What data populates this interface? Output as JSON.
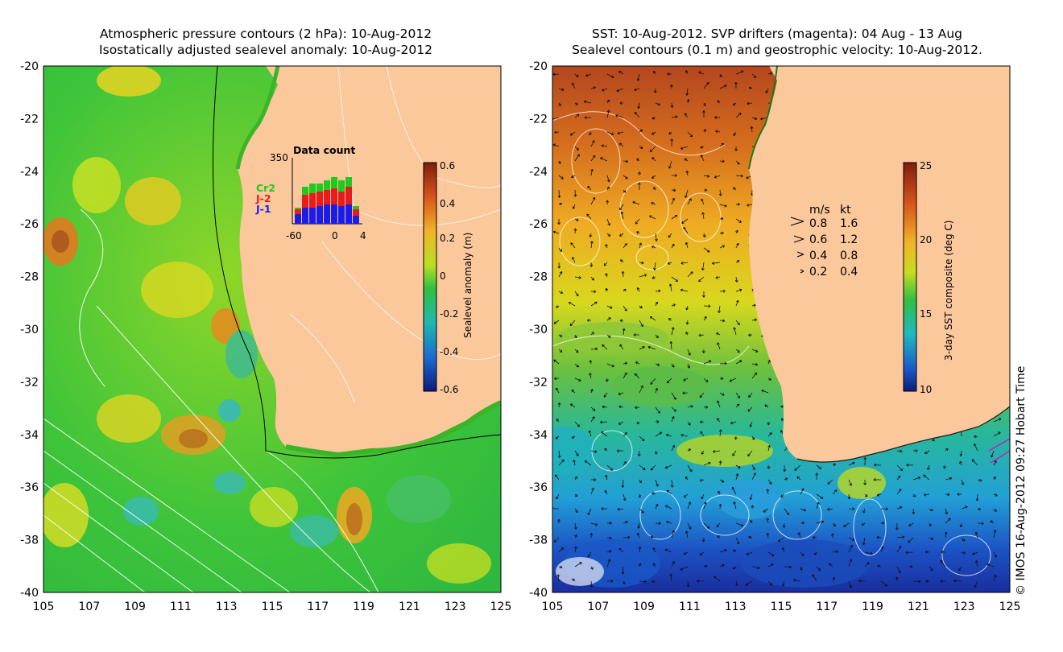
{
  "left_panel": {
    "title_line1": "Atmospheric pressure contours (2 hPa): 10-Aug-2012",
    "title_line2": "Isostatically adjusted sealevel anomaly: 10-Aug-2012",
    "colorbar_label": "Sealevel anomaly (m)",
    "colorbar_ticks": [
      "0.6",
      "0.4",
      "0.2",
      "0",
      "-0.2",
      "-0.4",
      "-0.6"
    ],
    "inset": {
      "title": "Data count",
      "ymax_label": "350",
      "x_labels": [
        "-60",
        "0",
        "4"
      ],
      "legend": [
        "Cr2",
        "J-2",
        "J-1"
      ]
    }
  },
  "right_panel": {
    "title_line1": "SST: 10-Aug-2012. SVP drifters (magenta): 04 Aug - 13 Aug",
    "title_line2": "Sealevel contours (0.1 m) and geostrophic velocity: 10-Aug-2012.",
    "colorbar_label": "3-day SST composite (deg C)",
    "colorbar_ticks": [
      "25",
      "20",
      "15",
      "10"
    ],
    "velocity_key": {
      "header_ms": "m/s",
      "header_kt": "kt",
      "rows": [
        {
          "ms": "0.8",
          "kt": "1.6"
        },
        {
          "ms": "0.6",
          "kt": "1.2"
        },
        {
          "ms": "0.4",
          "kt": "0.8"
        },
        {
          "ms": "0.2",
          "kt": "0.4"
        }
      ]
    }
  },
  "axes": {
    "lat_labels": [
      "-20",
      "-22",
      "-24",
      "-26",
      "-28",
      "-30",
      "-32",
      "-34",
      "-36",
      "-38",
      "-40"
    ],
    "lon_labels": [
      "105",
      "107",
      "109",
      "111",
      "113",
      "115",
      "117",
      "119",
      "121",
      "123",
      "125"
    ]
  },
  "credit": "© IMOS 16-Aug-2012 09:27 Hobart Time",
  "colors": {
    "land": "#fbc89c",
    "ocean_green": "#4cc83c",
    "sst_warm": "#d2691e",
    "sst_cold": "#1a3ca0",
    "contour": "#ffffff"
  }
}
